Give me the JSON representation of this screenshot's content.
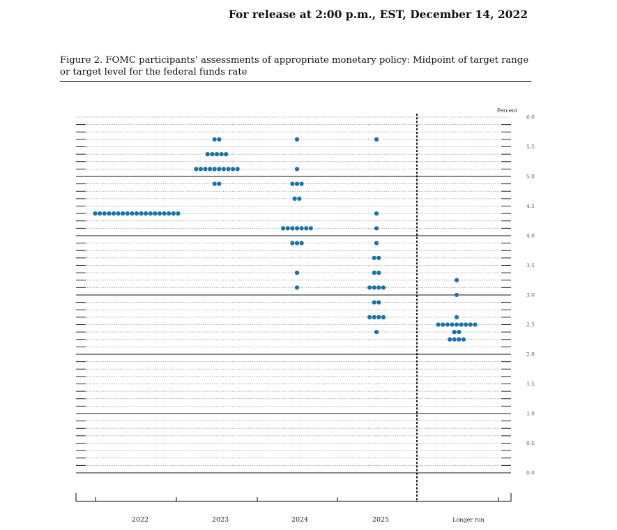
{
  "header": {
    "release": "For release at 2:00 p.m., EST, December 14, 2022"
  },
  "figure": {
    "title": "Figure 2. FOMC participants’ assessments of appropriate monetary policy: Midpoint of target range or target level for the federal funds rate"
  },
  "chart_data": {
    "type": "scatter",
    "subtype": "dot plot",
    "categories": [
      "2022",
      "2023",
      "2024",
      "2025",
      "Longer run"
    ],
    "ylabel": "Percent",
    "ylim": [
      0,
      6.0
    ],
    "yticks": [
      "0.0",
      "0.5",
      "1.0",
      "1.5",
      "2.0",
      "2.5",
      "3.0",
      "3.5",
      "4.0",
      "4.5",
      "5.0",
      "5.5",
      "6.0"
    ],
    "grid": true,
    "dot_color": "#1a73a8",
    "separator_before": "Longer run",
    "series": [
      {
        "category": "2022",
        "points": [
          {
            "y": 4.375,
            "count": 19
          }
        ]
      },
      {
        "category": "2023",
        "points": [
          {
            "y": 5.625,
            "count": 2
          },
          {
            "y": 5.375,
            "count": 5
          },
          {
            "y": 5.125,
            "count": 10
          },
          {
            "y": 4.875,
            "count": 2
          }
        ]
      },
      {
        "category": "2024",
        "points": [
          {
            "y": 5.625,
            "count": 1
          },
          {
            "y": 5.125,
            "count": 1
          },
          {
            "y": 4.875,
            "count": 3
          },
          {
            "y": 4.625,
            "count": 2
          },
          {
            "y": 4.125,
            "count": 7
          },
          {
            "y": 3.875,
            "count": 3
          },
          {
            "y": 3.375,
            "count": 1
          },
          {
            "y": 3.125,
            "count": 1
          }
        ]
      },
      {
        "category": "2025",
        "points": [
          {
            "y": 5.625,
            "count": 1
          },
          {
            "y": 4.375,
            "count": 1
          },
          {
            "y": 4.125,
            "count": 1
          },
          {
            "y": 3.875,
            "count": 1
          },
          {
            "y": 3.625,
            "count": 2
          },
          {
            "y": 3.375,
            "count": 2
          },
          {
            "y": 3.125,
            "count": 4
          },
          {
            "y": 2.875,
            "count": 2
          },
          {
            "y": 2.625,
            "count": 4
          },
          {
            "y": 2.375,
            "count": 1
          }
        ]
      },
      {
        "category": "Longer run",
        "points": [
          {
            "y": 3.25,
            "count": 1
          },
          {
            "y": 3.0,
            "count": 1
          },
          {
            "y": 2.625,
            "count": 1
          },
          {
            "y": 2.5,
            "count": 9
          },
          {
            "y": 2.375,
            "count": 2
          },
          {
            "y": 2.25,
            "count": 4
          }
        ]
      }
    ]
  }
}
